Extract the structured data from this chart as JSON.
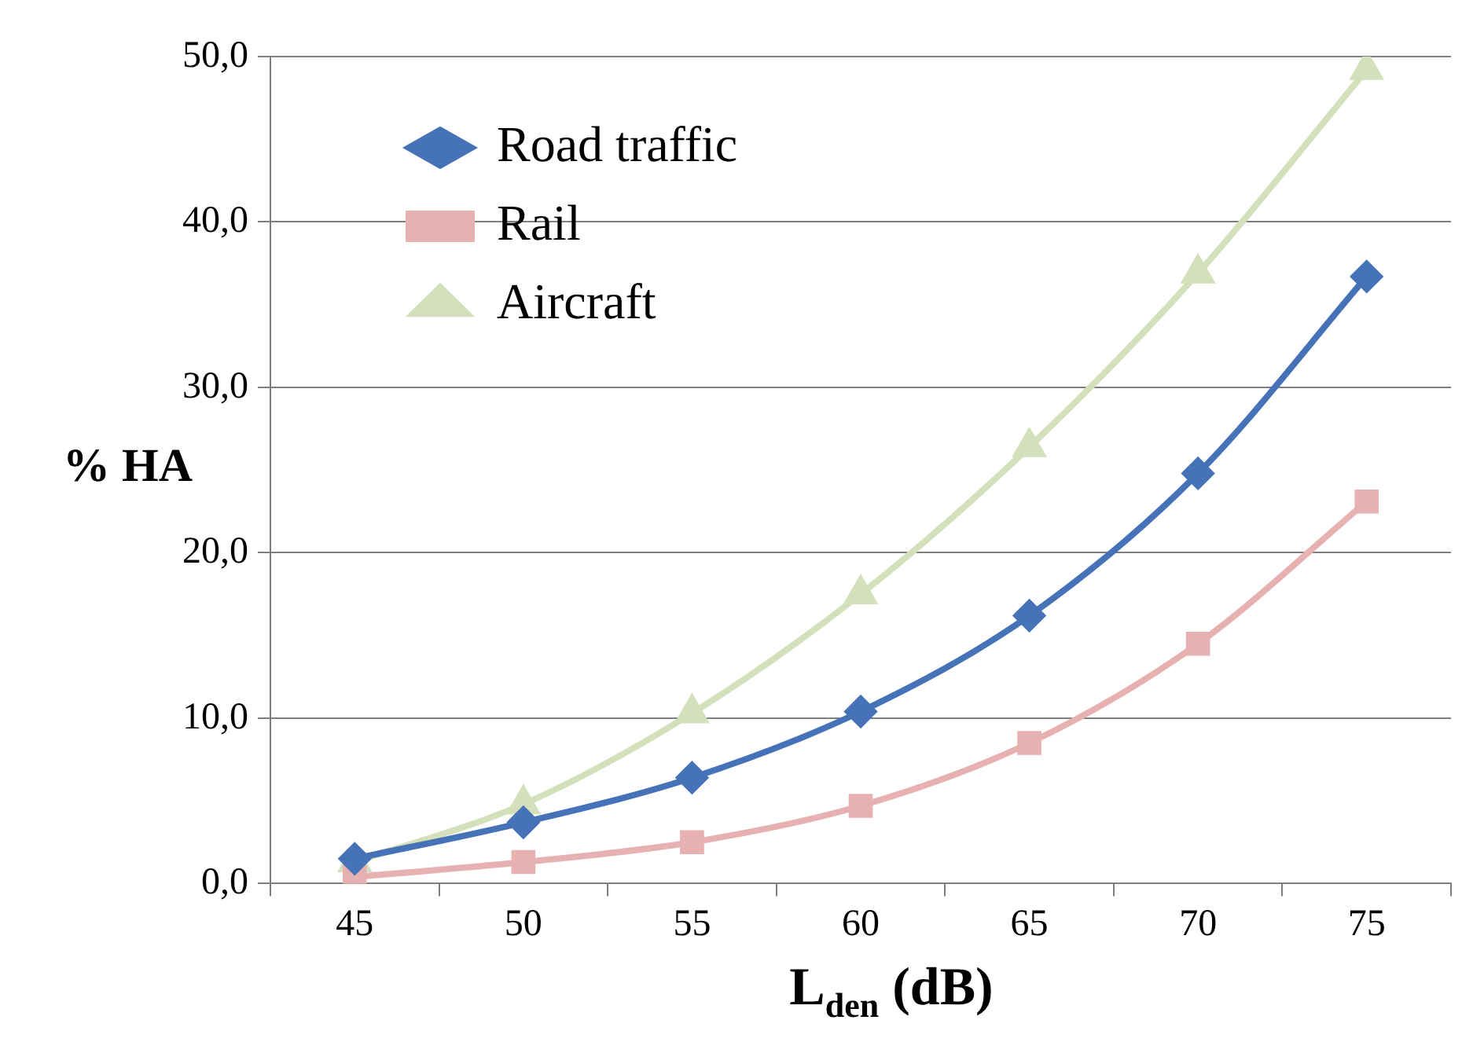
{
  "chart_data": {
    "type": "line",
    "xlabel": "L$_{den}$ (dB)",
    "ylabel": "% HA",
    "categories": [
      "45",
      "50",
      "55",
      "60",
      "65",
      "70",
      "75"
    ],
    "series": [
      {
        "name": "Road traffic",
        "color": "#4672b8",
        "marker": "diamond",
        "values": [
          1.5,
          3.7,
          6.4,
          10.4,
          16.2,
          24.8,
          36.7
        ]
      },
      {
        "name": "Rail",
        "color": "#e6b1b0",
        "marker": "square",
        "values": [
          0.4,
          1.3,
          2.5,
          4.7,
          8.5,
          14.5,
          23.1
        ]
      },
      {
        "name": "Aircraft",
        "color": "#d4e0bb",
        "marker": "triangle",
        "values": [
          1.3,
          4.8,
          10.3,
          17.5,
          26.4,
          36.9,
          49.2
        ]
      }
    ],
    "ylim": [
      0,
      50
    ],
    "yticks": [
      {
        "value": 0,
        "label": "0,0"
      },
      {
        "value": 10,
        "label": "10,0"
      },
      {
        "value": 20,
        "label": "20,0"
      },
      {
        "value": 30,
        "label": "30,0"
      },
      {
        "value": 40,
        "label": "40,0"
      },
      {
        "value": 50,
        "label": "50,0"
      }
    ],
    "grid": "y",
    "legend": "top left",
    "line_style": "solid"
  }
}
